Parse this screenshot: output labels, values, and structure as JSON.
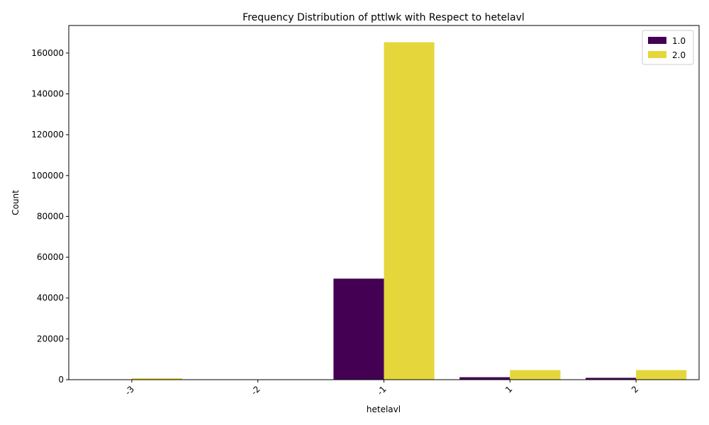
{
  "chart_data": {
    "type": "bar",
    "title": "Frequency Distribution of pttlwk with Respect to hetelavl",
    "xlabel": "hetelavl",
    "ylabel": "Count",
    "categories": [
      "-3",
      "-2",
      "-1",
      "1",
      "2"
    ],
    "ylim": [
      0,
      173500
    ],
    "yticks": [
      0,
      20000,
      40000,
      60000,
      80000,
      100000,
      120000,
      140000,
      160000
    ],
    "grid": false,
    "legend_position": "top-right",
    "series": [
      {
        "name": "1.0",
        "color": "#440154",
        "values": [
          50,
          40,
          49500,
          1200,
          900
        ]
      },
      {
        "name": "2.0",
        "color": "#e5d63c",
        "values": [
          700,
          120,
          165300,
          4700,
          4700
        ]
      }
    ]
  }
}
